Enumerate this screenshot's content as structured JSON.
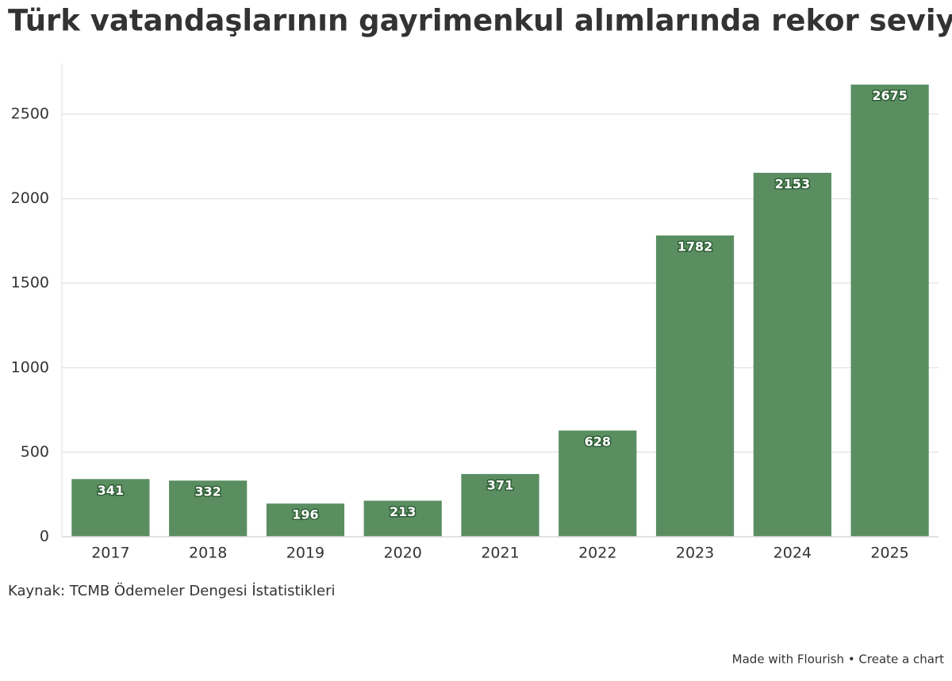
{
  "chart_data": {
    "type": "bar",
    "title": "Türk vatandaşlarının gayrimenkul alımlarında rekor seviye",
    "categories": [
      "2017",
      "2018",
      "2019",
      "2020",
      "2021",
      "2022",
      "2023",
      "2024",
      "2025"
    ],
    "values": [
      341,
      332,
      196,
      213,
      371,
      628,
      1782,
      2153,
      2675
    ],
    "color": "#5a8e61",
    "ylim": [
      0,
      2800
    ],
    "yticks": [
      0,
      500,
      1000,
      1500,
      2000,
      2500
    ],
    "grid": true,
    "source": "Kaynak: TCMB Ödemeler Dengesi İstatistikleri"
  },
  "footer": "Made with Flourish • Create a chart"
}
